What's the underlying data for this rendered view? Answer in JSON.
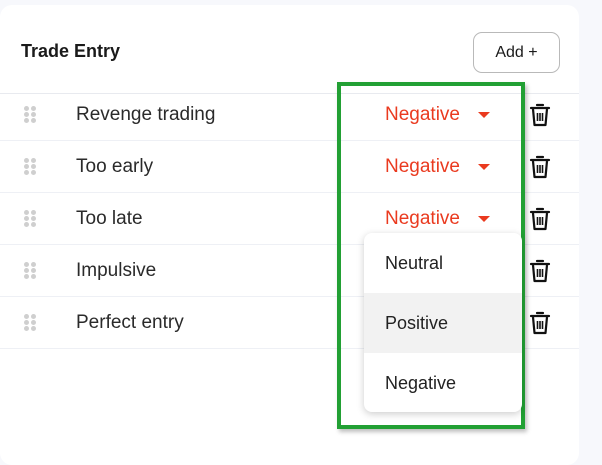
{
  "header": {
    "title": "Trade Entry",
    "add_label": "Add +"
  },
  "rows": [
    {
      "label": "Revenge trading",
      "sentiment": "Negative"
    },
    {
      "label": "Too early",
      "sentiment": "Negative"
    },
    {
      "label": "Too late",
      "sentiment": "Negative"
    },
    {
      "label": "Impulsive",
      "sentiment": ""
    },
    {
      "label": "Perfect entry",
      "sentiment": ""
    }
  ],
  "dropdown": {
    "options": [
      "Neutral",
      "Positive",
      "Negative"
    ],
    "hovered": "Positive"
  },
  "colors": {
    "negative": "#ea3a1f",
    "highlight_box": "#22a034"
  }
}
